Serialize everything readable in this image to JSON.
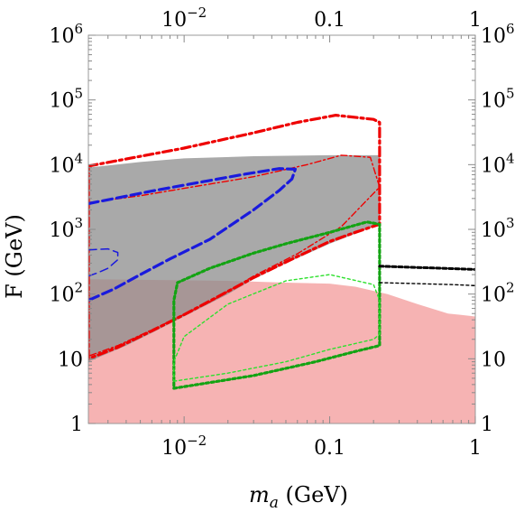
{
  "chart_data": {
    "type": "area",
    "title": "",
    "xlabel": "m_a (GeV)",
    "xlabel_parts": {
      "symbol": "m",
      "subscript": "a",
      "unit": " (GeV)"
    },
    "ylabel": "F (GeV)",
    "xscale": "log",
    "yscale": "log",
    "xlim": [
      0.0022,
      1.0
    ],
    "ylim": [
      1,
      1000000
    ],
    "grid": false,
    "x_ticks_bottom": [
      {
        "value": 0.01,
        "base": "10",
        "exp": "−2"
      },
      {
        "value": 0.1,
        "text": "0.1"
      },
      {
        "value": 1,
        "text": "1"
      }
    ],
    "x_ticks_top": [
      {
        "value": 0.01,
        "base": "10",
        "exp": "−2"
      },
      {
        "value": 0.1,
        "text": "0.1"
      },
      {
        "value": 1,
        "text": "1"
      }
    ],
    "y_ticks": [
      {
        "value": 1,
        "text": "1"
      },
      {
        "value": 10,
        "text": "10"
      },
      {
        "value": 100,
        "base": "10",
        "exp": "2"
      },
      {
        "value": 1000,
        "base": "10",
        "exp": "3"
      },
      {
        "value": 10000,
        "base": "10",
        "exp": "4"
      },
      {
        "value": 100000,
        "base": "10",
        "exp": "5"
      },
      {
        "value": 1000000,
        "base": "10",
        "exp": "6"
      }
    ],
    "regions": [
      {
        "name": "",
        "color": "#f4a6a6",
        "opacity": 0.85,
        "points": [
          [
            0.0022,
            1
          ],
          [
            1.0,
            1
          ],
          [
            1.0,
            45
          ],
          [
            0.65,
            50
          ],
          [
            0.4,
            70
          ],
          [
            0.25,
            100
          ],
          [
            0.15,
            130
          ],
          [
            0.1,
            145
          ],
          [
            0.05,
            150
          ],
          [
            0.02,
            160
          ],
          [
            0.0022,
            170
          ]
        ]
      },
      {
        "name": "",
        "color": "#8c8c8c",
        "opacity": 0.75,
        "points": [
          [
            0.0022,
            9000
          ],
          [
            0.005,
            11000
          ],
          [
            0.01,
            12500
          ],
          [
            0.03,
            13500
          ],
          [
            0.1,
            14000
          ],
          [
            0.22,
            14000
          ],
          [
            0.22,
            1200
          ],
          [
            0.1,
            600
          ],
          [
            0.05,
            300
          ],
          [
            0.03,
            170
          ],
          [
            0.02,
            100
          ],
          [
            0.01,
            45
          ],
          [
            0.006,
            25
          ],
          [
            0.004,
            16
          ],
          [
            0.0022,
            9
          ]
        ]
      }
    ],
    "series": [
      {
        "name": "",
        "color": "#ee0000",
        "width": 3.2,
        "dash": "10,4,3,4",
        "closed": true,
        "points": [
          [
            0.0022,
            9500
          ],
          [
            0.01,
            18000
          ],
          [
            0.03,
            31000
          ],
          [
            0.06,
            45000
          ],
          [
            0.11,
            58000
          ],
          [
            0.2,
            50000
          ],
          [
            0.22,
            45000
          ],
          [
            0.22,
            1200
          ],
          [
            0.15,
            900
          ],
          [
            0.1,
            650
          ],
          [
            0.06,
            380
          ],
          [
            0.03,
            180
          ],
          [
            0.02,
            110
          ],
          [
            0.01,
            48
          ],
          [
            0.006,
            27
          ],
          [
            0.0035,
            15
          ],
          [
            0.0022,
            10
          ]
        ]
      },
      {
        "name": "",
        "color": "#ee0000",
        "width": 1.4,
        "dash": "7,3,2,3",
        "closed": true,
        "points": [
          [
            0.0022,
            2600
          ],
          [
            0.005,
            3300
          ],
          [
            0.01,
            4300
          ],
          [
            0.03,
            6500
          ],
          [
            0.07,
            10000
          ],
          [
            0.12,
            14000
          ],
          [
            0.19,
            13000
          ],
          [
            0.22,
            4500
          ],
          [
            0.12,
            1100
          ],
          [
            0.06,
            420
          ],
          [
            0.03,
            190
          ],
          [
            0.015,
            75
          ],
          [
            0.006,
            28
          ],
          [
            0.0035,
            16
          ],
          [
            0.0022,
            11
          ]
        ]
      },
      {
        "name": "",
        "color": "#1a1add",
        "width": 3.2,
        "dash": "11,5",
        "closed": false,
        "points": [
          [
            0.0022,
            2500
          ],
          [
            0.006,
            3900
          ],
          [
            0.012,
            5200
          ],
          [
            0.025,
            7000
          ],
          [
            0.045,
            8700
          ],
          [
            0.058,
            8500
          ],
          [
            0.055,
            6000
          ],
          [
            0.045,
            4000
          ],
          [
            0.03,
            2000
          ],
          [
            0.015,
            700
          ],
          [
            0.008,
            350
          ],
          [
            0.005,
            200
          ],
          [
            0.0033,
            120
          ],
          [
            0.0022,
            80
          ]
        ]
      },
      {
        "name": "",
        "color": "#1a1add",
        "width": 1.5,
        "dash": "9,5",
        "closed": false,
        "points": [
          [
            0.0022,
            480
          ],
          [
            0.003,
            500
          ],
          [
            0.0035,
            440
          ],
          [
            0.0035,
            340
          ],
          [
            0.003,
            250
          ],
          [
            0.0025,
            210
          ],
          [
            0.0022,
            190
          ]
        ]
      },
      {
        "name": "",
        "color": "#13a313",
        "width": 3.2,
        "dash": "3,3",
        "closed": true,
        "points": [
          [
            0.0085,
            3.5
          ],
          [
            0.03,
            5.5
          ],
          [
            0.08,
            9
          ],
          [
            0.15,
            13
          ],
          [
            0.22,
            16
          ],
          [
            0.22,
            1200
          ],
          [
            0.18,
            1300
          ],
          [
            0.1,
            900
          ],
          [
            0.05,
            600
          ],
          [
            0.03,
            430
          ],
          [
            0.015,
            250
          ],
          [
            0.009,
            150
          ],
          [
            0.0085,
            80
          ]
        ]
      },
      {
        "name": "",
        "color": "#2ee02e",
        "width": 1.4,
        "dash": "3,3",
        "closed": true,
        "points": [
          [
            0.0085,
            4.5
          ],
          [
            0.02,
            6
          ],
          [
            0.05,
            9
          ],
          [
            0.1,
            14
          ],
          [
            0.2,
            20
          ],
          [
            0.22,
            24
          ],
          [
            0.22,
            80
          ],
          [
            0.2,
            140
          ],
          [
            0.1,
            200
          ],
          [
            0.05,
            160
          ],
          [
            0.02,
            70
          ],
          [
            0.01,
            22
          ],
          [
            0.0085,
            9
          ]
        ]
      },
      {
        "name": "",
        "color": "#000000",
        "width": 3,
        "dash": "4,3",
        "closed": false,
        "points": [
          [
            0.22,
            270
          ],
          [
            0.35,
            260
          ],
          [
            0.6,
            250
          ],
          [
            1.0,
            240
          ]
        ]
      },
      {
        "name": "",
        "color": "#000000",
        "width": 1.4,
        "dash": "3,3",
        "closed": false,
        "points": [
          [
            0.22,
            150
          ],
          [
            0.4,
            145
          ],
          [
            0.7,
            140
          ],
          [
            1.0,
            135
          ]
        ]
      }
    ]
  }
}
